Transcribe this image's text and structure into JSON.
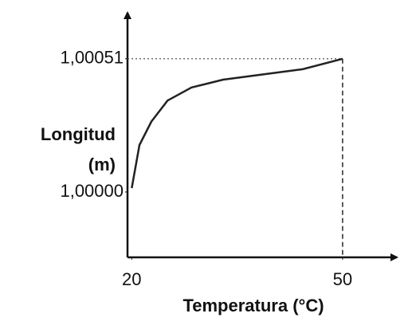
{
  "chart_data": {
    "type": "line",
    "xlabel": "Temperatura (°C)",
    "ylabel": [
      "Longitud",
      "(m)"
    ],
    "x": [
      20,
      21.1,
      22.8,
      25.1,
      28.5,
      33,
      38.7,
      44.3,
      50
    ],
    "series": [
      {
        "color": "#222222",
        "values": [
          1.000015,
          1.00018,
          1.00027,
          1.00035,
          1.0004,
          1.00043,
          1.00045,
          1.00047,
          1.00051
        ]
      }
    ],
    "xlim": [
      19.4,
      57.5
    ],
    "ylim": [
      0.99975,
      1.00068
    ],
    "xticks": [
      20,
      50
    ],
    "yticks": [
      {
        "value": 1.0,
        "label": "1,00000"
      },
      {
        "value": 1.00051,
        "label": "1,00051"
      }
    ],
    "grid": false
  }
}
